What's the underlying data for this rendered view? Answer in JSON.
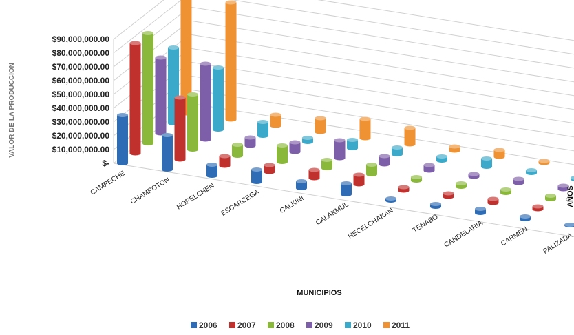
{
  "chart_data": {
    "type": "bar",
    "title": "",
    "xlabel": "MUNICIPIOS",
    "ylabel": "VALOR DE LA PRODUCCION",
    "zlabel": "AÑOS",
    "ylim": [
      0,
      90000000
    ],
    "y_ticks": [
      "$-",
      "$10,000,000.00",
      "$20,000,000.00",
      "$30,000,000.00",
      "$40,000,000.00",
      "$50,000,000.00",
      "$60,000,000.00",
      "$70,000,000.00",
      "$80,000,000.00",
      "$90,000,000.00"
    ],
    "categories": [
      "CAMPECHE",
      "CHAMPOTON",
      "HOPELCHEN",
      "ESCARCEGA",
      "CALKINI",
      "CALAKMUL",
      "HECELCHAKAN",
      "TENABO",
      "CANDELARIA",
      "CARMEN",
      "PALIZADA"
    ],
    "series": [
      {
        "name": "2006",
        "color": "#2e6db5",
        "values": [
          35000000,
          25000000,
          8000000,
          9000000,
          5000000,
          8000000,
          1500000,
          2000000,
          3000000,
          2000000,
          500000
        ]
      },
      {
        "name": "2007",
        "color": "#c0312e",
        "values": [
          80000000,
          45000000,
          7000000,
          5000000,
          6000000,
          7000000,
          2500000,
          2500000,
          3000000,
          2000000,
          500000
        ]
      },
      {
        "name": "2008",
        "color": "#8ab83a",
        "values": [
          80000000,
          40000000,
          8000000,
          12000000,
          6000000,
          7000000,
          2500000,
          2500000,
          2500000,
          2500000,
          500000
        ]
      },
      {
        "name": "2009",
        "color": "#7d5ea8",
        "values": [
          55000000,
          55000000,
          6000000,
          7000000,
          13000000,
          6000000,
          4000000,
          2000000,
          3000000,
          2500000,
          500000
        ]
      },
      {
        "name": "2010",
        "color": "#3ba9c9",
        "values": [
          55000000,
          45000000,
          10000000,
          3000000,
          6000000,
          5000000,
          3000000,
          6000000,
          2000000,
          1000000,
          500000
        ]
      },
      {
        "name": "2011",
        "color": "#ee9233",
        "values": [
          85000000,
          85000000,
          8000000,
          10000000,
          14000000,
          12000000,
          3000000,
          5000000,
          1500000,
          1500000,
          500000
        ]
      }
    ]
  }
}
